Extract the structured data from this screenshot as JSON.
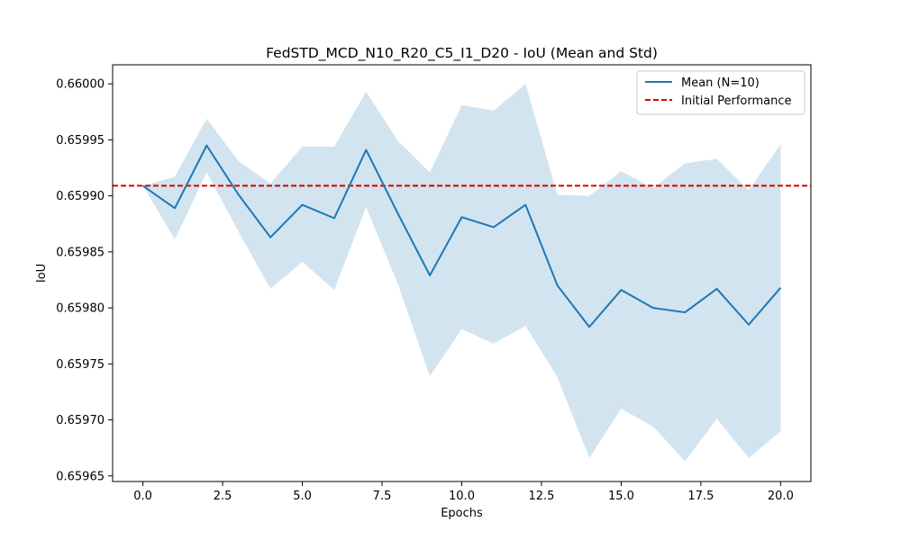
{
  "chart_data": {
    "type": "line",
    "title": "FedSTD_MCD_N10_R20_C5_I1_D20 - IoU (Mean and Std)",
    "xlabel": "Epochs",
    "ylabel": "IoU",
    "xlim": [
      -0.95,
      20.95
    ],
    "ylim": [
      0.659645,
      0.660017
    ],
    "x_ticks": [
      0.0,
      2.5,
      5.0,
      7.5,
      10.0,
      12.5,
      15.0,
      17.5,
      20.0
    ],
    "x_tick_labels": [
      "0.0",
      "2.5",
      "5.0",
      "7.5",
      "10.0",
      "12.5",
      "15.0",
      "17.5",
      "20.0"
    ],
    "y_ticks": [
      0.65965,
      0.6597,
      0.65975,
      0.6598,
      0.65985,
      0.6599,
      0.65995,
      0.66
    ],
    "y_tick_labels": [
      "0.65965",
      "0.65970",
      "0.65975",
      "0.65980",
      "0.65985",
      "0.65990",
      "0.65995",
      "0.66000"
    ],
    "x": [
      0,
      1,
      2,
      3,
      4,
      5,
      6,
      7,
      8,
      9,
      10,
      11,
      12,
      13,
      14,
      15,
      16,
      17,
      18,
      19,
      20
    ],
    "series": [
      {
        "name": "Mean (N=10)",
        "color": "#1f77b4",
        "values": [
          0.659909,
          0.659889,
          0.659945,
          0.659901,
          0.659863,
          0.659892,
          0.65988,
          0.659941,
          0.659884,
          0.659829,
          0.659881,
          0.659872,
          0.659892,
          0.65982,
          0.659783,
          0.659816,
          0.6598,
          0.659796,
          0.659817,
          0.659785,
          0.659818
        ],
        "band_upper": [
          0.659909,
          0.659917,
          0.659969,
          0.659931,
          0.659911,
          0.659944,
          0.659944,
          0.659993,
          0.659949,
          0.659921,
          0.659981,
          0.659976,
          0.66,
          0.659901,
          0.6599,
          0.659922,
          0.659907,
          0.659929,
          0.659933,
          0.659905,
          0.659946
        ],
        "band_lower": [
          0.659909,
          0.659861,
          0.659921,
          0.659868,
          0.659817,
          0.659841,
          0.659816,
          0.65989,
          0.659821,
          0.659739,
          0.659781,
          0.659768,
          0.659784,
          0.659738,
          0.659666,
          0.65971,
          0.659694,
          0.659663,
          0.659701,
          0.659666,
          0.65969
        ],
        "band_color": "#1f77b4",
        "band_opacity": 0.2
      },
      {
        "name": "Initial Performance",
        "color": "#e00000",
        "style": "dashed",
        "constant": 0.659909
      }
    ],
    "legend": "top-right",
    "grid": false
  }
}
